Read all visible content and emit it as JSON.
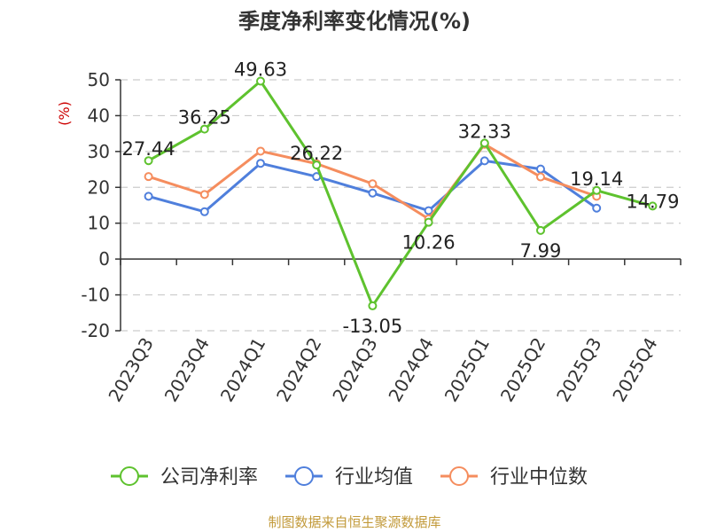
{
  "chart_data": {
    "type": "line",
    "title": "季度净利率变化情况(%)",
    "ylabel": "(%)",
    "ylim": [
      -20,
      50
    ],
    "yticks": [
      50,
      40,
      30,
      20,
      10,
      0,
      -10,
      -20
    ],
    "grid": true,
    "legend_position": "bottom",
    "categories": [
      "2023Q3",
      "2023Q4",
      "2024Q1",
      "2024Q2",
      "2024Q3",
      "2024Q4",
      "2025Q1",
      "2025Q2",
      "2025Q3",
      "2025Q4"
    ],
    "series": [
      {
        "name": "公司净利率",
        "color": "#5ec22e",
        "values": [
          27.44,
          36.25,
          49.63,
          26.22,
          -13.05,
          10.26,
          32.33,
          7.99,
          19.14,
          14.79
        ],
        "labels": [
          "27.44",
          "36.25",
          "49.63",
          "26.22",
          "-13.05",
          "10.26",
          "32.33",
          "7.99",
          "19.14",
          "14.79"
        ]
      },
      {
        "name": "行业均值",
        "color": "#4f7fdc",
        "values": [
          17.5,
          13.2,
          26.7,
          23.0,
          18.4,
          13.5,
          27.4,
          25.1,
          14.2,
          null
        ]
      },
      {
        "name": "行业中位数",
        "color": "#f58d5e",
        "values": [
          23.0,
          18.0,
          30.1,
          26.6,
          21.0,
          11.2,
          32.0,
          22.9,
          17.5,
          null
        ]
      }
    ],
    "source": "制图数据来自恒生聚源数据库"
  }
}
